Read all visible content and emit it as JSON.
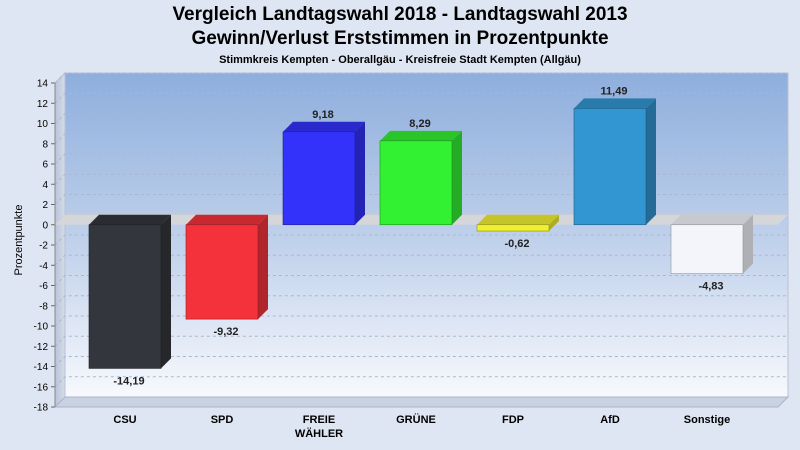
{
  "chart_data": {
    "type": "bar",
    "title": "Vergleich Landtagswahl 2018 - Landtagswahl 2013",
    "title_line2": "Gewinn/Verlust Erststimmen in Prozentpunkte",
    "subtitle": "Stimmkreis Kempten - Oberallgäu - Kreisfreie Stadt Kempten (Allgäu)",
    "ylabel": "Prozentpunkte",
    "xlabel": "",
    "ylim": [
      -18,
      14
    ],
    "yticks": [
      14,
      12,
      10,
      8,
      6,
      4,
      2,
      0,
      -2,
      -4,
      -6,
      -8,
      -10,
      -12,
      -14,
      -16,
      -18
    ],
    "grid": true,
    "categories": [
      [
        "CSU"
      ],
      [
        "SPD"
      ],
      [
        "FREIE",
        "WÄHLER"
      ],
      [
        "GRÜNE"
      ],
      [
        "FDP"
      ],
      [
        "AfD"
      ],
      [
        "Sonstige"
      ]
    ],
    "values": [
      -14.19,
      -9.32,
      9.18,
      8.29,
      -0.62,
      11.49,
      -4.83
    ],
    "labels": [
      "-14,19",
      "-9,32",
      "9,18",
      "8,29",
      "-0,62",
      "11,49",
      "-4,83"
    ],
    "colors": [
      "#33363c",
      "#f4323c",
      "#3232fa",
      "#32f032",
      "#f0f032",
      "#3296d2",
      "#f3f5fb"
    ]
  }
}
